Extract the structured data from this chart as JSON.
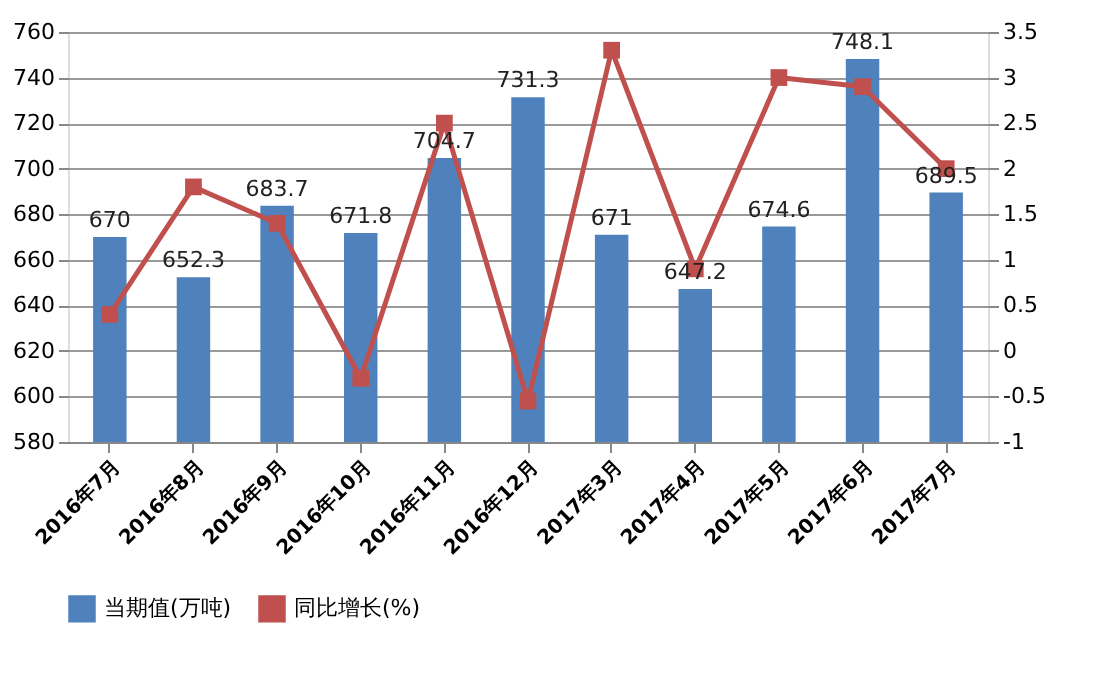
{
  "chart_data": {
    "type": "bar",
    "categories": [
      "2016年7月",
      "2016年8月",
      "2016年9月",
      "2016年10月",
      "2016年11月",
      "2016年12月",
      "2017年3月",
      "2017年4月",
      "2017年5月",
      "2017年6月",
      "2017年7月"
    ],
    "series": [
      {
        "name": "当期值(万吨)",
        "color": "#4f81bd",
        "values": [
          670,
          652.3,
          683.7,
          671.8,
          704.7,
          731.3,
          671,
          647.2,
          674.6,
          748.1,
          689.5
        ],
        "value_labels": [
          "670",
          "652.3",
          "683.7",
          "671.8",
          "704.7",
          "731.3",
          "671",
          "647.2",
          "674.6",
          "748.1",
          "689.5"
        ]
      },
      {
        "name": "同比增长(%)",
        "type": "line",
        "axis": "y2",
        "color": "#c0504d",
        "marker": "square",
        "values": [
          0.4,
          1.8,
          1.4,
          -0.3,
          2.5,
          -0.55,
          3.3,
          0.9,
          3.0,
          2.9,
          2.0
        ]
      }
    ],
    "ylim": [
      580,
      760
    ],
    "yticks": [
      580,
      600,
      620,
      640,
      660,
      680,
      700,
      720,
      740,
      760
    ],
    "y2lim": [
      -1,
      3.5
    ],
    "y2ticks": [
      -1,
      -0.5,
      0,
      0.5,
      1,
      1.5,
      2,
      2.5,
      3,
      3.5
    ],
    "grid": "y",
    "legend": "bottom"
  }
}
